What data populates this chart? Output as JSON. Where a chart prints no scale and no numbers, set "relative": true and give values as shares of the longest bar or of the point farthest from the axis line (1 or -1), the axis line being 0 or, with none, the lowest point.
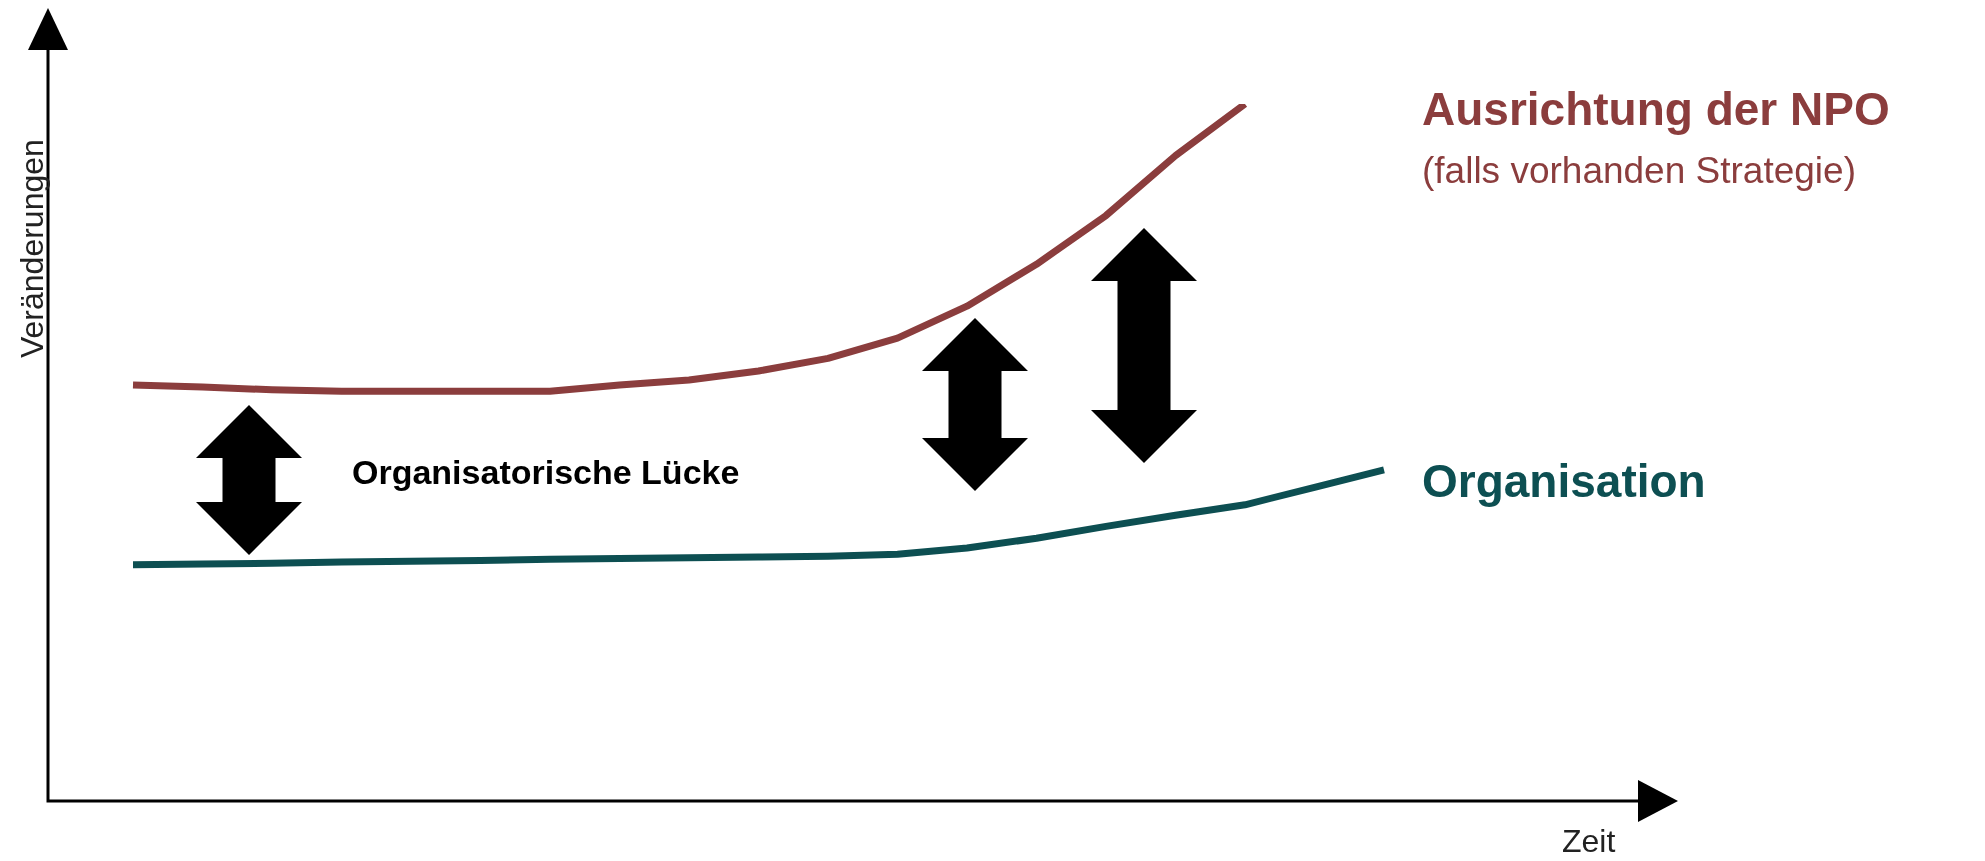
{
  "chart_data": {
    "type": "line",
    "relative": true,
    "xlabel": "Zeit",
    "ylabel": "Veränderungen",
    "categories": [
      null,
      null,
      null,
      null,
      null,
      null,
      null,
      null,
      null,
      null,
      null,
      null,
      null,
      null,
      null,
      null,
      null,
      null,
      null
    ],
    "series": [
      {
        "name": "Ausrichtung der NPO",
        "color": "#8b3d3d",
        "values": [
          0.597,
          0.594,
          0.59,
          0.588,
          0.588,
          0.588,
          0.588,
          0.597,
          0.604,
          0.617,
          0.635,
          0.664,
          0.71,
          0.77,
          0.84,
          0.926,
          1,
          null,
          null
        ]
      },
      {
        "name": "Organisation",
        "color": "#0d4f52",
        "values": [
          0.339,
          0.34,
          0.341,
          0.343,
          0.344,
          0.345,
          0.347,
          0.348,
          0.349,
          0.35,
          0.351,
          0.354,
          0.363,
          0.377,
          0.394,
          0.41,
          0.425,
          0.45,
          0.475
        ]
      }
    ],
    "annotations": [
      "Organisatorische Lücke",
      "(falls vorhanden Strategie)"
    ]
  }
}
